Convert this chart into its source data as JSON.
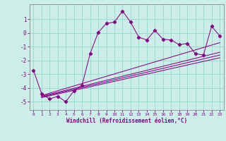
{
  "xlabel": "Windchill (Refroidissement éolien,°C)",
  "bg_color": "#cceee8",
  "grid_color": "#99ddcc",
  "line_color": "#880088",
  "spine_color": "#888888",
  "x_data": [
    0,
    1,
    2,
    3,
    4,
    5,
    6,
    7,
    8,
    9,
    10,
    11,
    12,
    13,
    14,
    15,
    16,
    17,
    18,
    19,
    20,
    21,
    22,
    23
  ],
  "y_scatter": [
    -2.7,
    -4.4,
    -4.8,
    -4.6,
    -5.0,
    -4.2,
    -3.8,
    -1.5,
    0.05,
    0.7,
    0.8,
    1.6,
    0.8,
    -0.3,
    -0.5,
    0.2,
    -0.45,
    -0.5,
    -0.85,
    -0.75,
    -1.5,
    -1.6,
    0.5,
    -0.2
  ],
  "reg_lines": [
    {
      "x0": 1,
      "y0": -4.55,
      "x1": 23,
      "y1": -0.7
    },
    {
      "x0": 1,
      "y0": -4.6,
      "x1": 23,
      "y1": -1.4
    },
    {
      "x0": 1,
      "y0": -4.65,
      "x1": 23,
      "y1": -1.6
    },
    {
      "x0": 1,
      "y0": -4.7,
      "x1": 23,
      "y1": -1.8
    }
  ],
  "xlim": [
    -0.5,
    23.5
  ],
  "ylim": [
    -5.6,
    2.1
  ],
  "yticks": [
    -5,
    -4,
    -3,
    -2,
    -1,
    0,
    1
  ],
  "xticks": [
    0,
    1,
    2,
    3,
    4,
    5,
    6,
    7,
    8,
    9,
    10,
    11,
    12,
    13,
    14,
    15,
    16,
    17,
    18,
    19,
    20,
    21,
    22,
    23
  ]
}
